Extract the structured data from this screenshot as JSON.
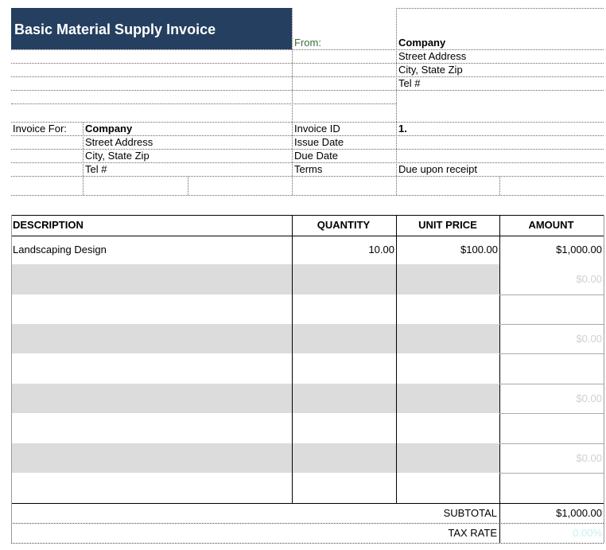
{
  "header": {
    "title": "Basic Material Supply Invoice",
    "from_label": "From:",
    "from": [
      "Company",
      "Street Address",
      "City, State Zip",
      "Tel #"
    ]
  },
  "bill_to": {
    "label": "Invoice For:",
    "lines": [
      "Company",
      "Street Address",
      "City, State Zip",
      "Tel #"
    ]
  },
  "invoice_info": [
    {
      "label": "Invoice ID",
      "value": "1."
    },
    {
      "label": "Issue Date"
    },
    {
      "label": "Due Date"
    },
    {
      "label": "Terms",
      "value": "Due upon receipt"
    }
  ],
  "table": {
    "columns": [
      "DESCRIPTION",
      "QUANTITY",
      "UNIT PRICE",
      "AMOUNT"
    ],
    "rows": [
      {
        "description": "Landscaping Design",
        "quantity": "10.00",
        "unit_price": "$100.00",
        "amount": "$1,000.00"
      },
      {
        "amount": "$0.00"
      },
      {},
      {
        "amount": "$0.00"
      },
      {},
      {
        "amount": "$0.00"
      },
      {},
      {
        "amount": "$0.00"
      },
      {}
    ]
  },
  "totals": [
    {
      "label": "SUBTOTAL",
      "value": "$1,000.00"
    },
    {
      "label": "TAX RATE",
      "value": "0.00%"
    }
  ]
}
